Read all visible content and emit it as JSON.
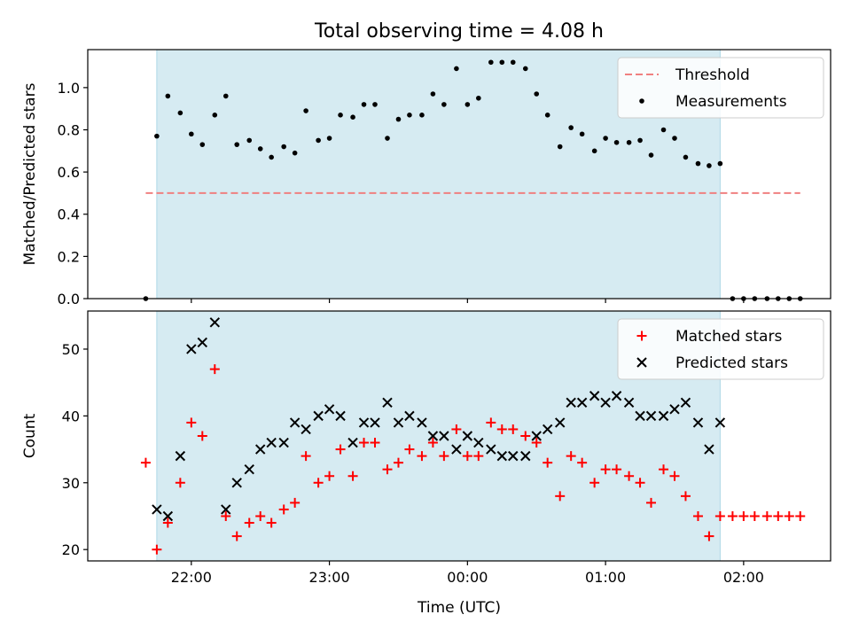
{
  "title": "Total observing time = 4.08 h",
  "chart_data": [
    {
      "type": "line",
      "xlabel": "",
      "ylabel": "Matched/Predicted stars",
      "xlim": [
        -2.75,
        2.63
      ],
      "ylim": [
        0.0,
        1.18
      ],
      "yticks": [
        0.0,
        0.2,
        0.4,
        0.6,
        0.8,
        1.0
      ],
      "ytick_labels": [
        "0.0",
        "0.2",
        "0.4",
        "0.6",
        "0.8",
        "1.0"
      ],
      "shaded_span": [
        -2.25,
        1.83
      ],
      "legend_position": "upper right",
      "series": [
        {
          "name": "Threshold",
          "style": "dashed-line",
          "color": "#f08080",
          "x": [
            -2.33,
            2.41
          ],
          "y": [
            0.5,
            0.5
          ]
        },
        {
          "name": "Measurements",
          "style": "dot",
          "color": "#000000",
          "x": [
            -2.33,
            -2.25,
            -2.17,
            -2.08,
            -2.0,
            -1.92,
            -1.83,
            -1.75,
            -1.67,
            -1.58,
            -1.5,
            -1.42,
            -1.33,
            -1.25,
            -1.17,
            -1.08,
            -1.0,
            -0.92,
            -0.83,
            -0.75,
            -0.67,
            -0.58,
            -0.5,
            -0.42,
            -0.33,
            -0.25,
            -0.17,
            -0.08,
            0.0,
            0.08,
            0.17,
            0.25,
            0.33,
            0.42,
            0.5,
            0.58,
            0.67,
            0.75,
            0.83,
            0.92,
            1.0,
            1.08,
            1.17,
            1.25,
            1.33,
            1.42,
            1.5,
            1.58,
            1.67,
            1.75,
            1.83,
            1.92,
            2.0,
            2.08,
            2.17,
            2.25,
            2.33,
            2.41
          ],
          "y": [
            0.0,
            0.77,
            0.96,
            0.88,
            0.78,
            0.73,
            0.87,
            0.96,
            0.73,
            0.75,
            0.71,
            0.67,
            0.72,
            0.69,
            0.89,
            0.75,
            0.76,
            0.87,
            0.86,
            0.92,
            0.92,
            0.76,
            0.85,
            0.87,
            0.87,
            0.97,
            0.92,
            1.09,
            0.92,
            0.95,
            1.12,
            1.12,
            1.12,
            1.09,
            0.97,
            0.87,
            0.72,
            0.81,
            0.78,
            0.7,
            0.76,
            0.74,
            0.74,
            0.75,
            0.68,
            0.8,
            0.76,
            0.67,
            0.64,
            0.63,
            0.64,
            0.0,
            0.0,
            0.0,
            0.0,
            0.0,
            0.0,
            0.0
          ]
        }
      ]
    },
    {
      "type": "scatter",
      "xlabel": "Time (UTC)",
      "ylabel": "Count",
      "xlim": [
        -2.75,
        2.63
      ],
      "ylim": [
        18.3,
        55.7
      ],
      "yticks": [
        20,
        30,
        40,
        50
      ],
      "ytick_labels": [
        "20",
        "30",
        "40",
        "50"
      ],
      "xticks": [
        -2.0,
        -1.0,
        0.0,
        1.0,
        2.0
      ],
      "xtick_labels": [
        "22:00",
        "23:00",
        "00:00",
        "01:00",
        "02:00"
      ],
      "shaded_span": [
        -2.25,
        1.83
      ],
      "legend_position": "upper right",
      "series": [
        {
          "name": "Matched stars",
          "style": "plus",
          "color": "#ff0000",
          "x": [
            -2.33,
            -2.25,
            -2.17,
            -2.08,
            -2.0,
            -1.92,
            -1.83,
            -1.75,
            -1.67,
            -1.58,
            -1.5,
            -1.42,
            -1.33,
            -1.25,
            -1.17,
            -1.08,
            -1.0,
            -0.92,
            -0.83,
            -0.75,
            -0.67,
            -0.58,
            -0.5,
            -0.42,
            -0.33,
            -0.25,
            -0.17,
            -0.08,
            0.0,
            0.08,
            0.17,
            0.25,
            0.33,
            0.42,
            0.5,
            0.58,
            0.67,
            0.75,
            0.83,
            0.92,
            1.0,
            1.08,
            1.17,
            1.25,
            1.33,
            1.42,
            1.5,
            1.58,
            1.67,
            1.75,
            1.83,
            1.92,
            2.0,
            2.08,
            2.17,
            2.25,
            2.33,
            2.41
          ],
          "y": [
            33,
            20,
            24,
            30,
            39,
            37,
            47,
            25,
            22,
            24,
            25,
            24,
            26,
            27,
            34,
            30,
            31,
            35,
            31,
            36,
            36,
            32,
            33,
            35,
            34,
            36,
            34,
            38,
            34,
            34,
            39,
            38,
            38,
            37,
            36,
            33,
            28,
            34,
            33,
            30,
            32,
            32,
            31,
            30,
            27,
            32,
            31,
            28,
            25,
            22,
            25,
            25,
            25,
            25,
            25,
            25,
            25,
            25
          ]
        },
        {
          "name": "Predicted stars",
          "style": "x",
          "color": "#000000",
          "x": [
            -2.25,
            -2.17,
            -2.08,
            -2.0,
            -1.92,
            -1.83,
            -1.75,
            -1.67,
            -1.58,
            -1.5,
            -1.42,
            -1.33,
            -1.25,
            -1.17,
            -1.08,
            -1.0,
            -0.92,
            -0.83,
            -0.75,
            -0.67,
            -0.58,
            -0.5,
            -0.42,
            -0.33,
            -0.25,
            -0.17,
            -0.08,
            0.0,
            0.08,
            0.17,
            0.25,
            0.33,
            0.42,
            0.5,
            0.58,
            0.67,
            0.75,
            0.83,
            0.92,
            1.0,
            1.08,
            1.17,
            1.25,
            1.33,
            1.42,
            1.5,
            1.58,
            1.67,
            1.75,
            1.83
          ],
          "y": [
            26,
            25,
            34,
            50,
            51,
            54,
            26,
            30,
            32,
            35,
            36,
            36,
            39,
            38,
            40,
            41,
            40,
            36,
            39,
            39,
            42,
            39,
            40,
            39,
            37,
            37,
            35,
            37,
            36,
            35,
            34,
            34,
            34,
            37,
            38,
            39,
            42,
            42,
            43,
            42,
            43,
            42,
            40,
            40,
            40,
            41,
            42,
            39,
            35,
            39
          ]
        }
      ]
    }
  ]
}
